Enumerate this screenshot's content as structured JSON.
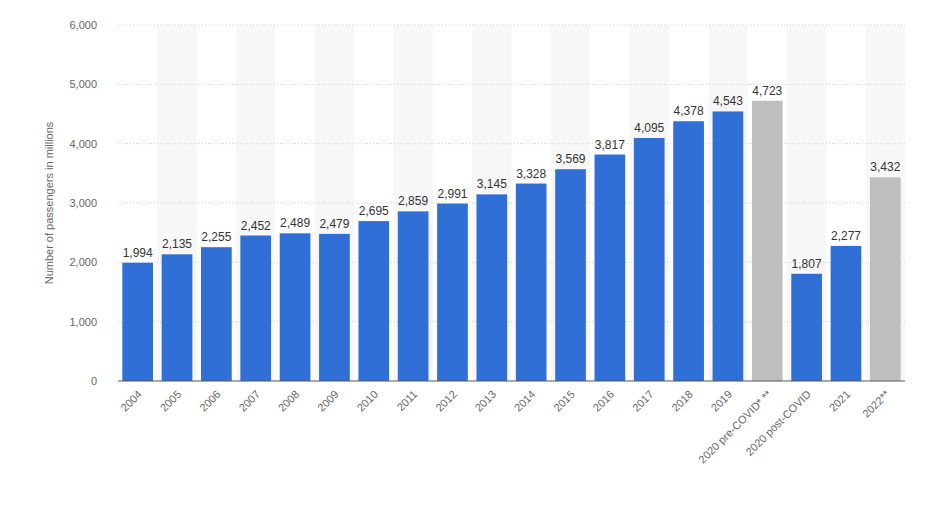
{
  "chart_data": {
    "type": "bar",
    "y_label": "Number of passengers in millions",
    "categories": [
      "2004",
      "2005",
      "2006",
      "2007",
      "2008",
      "2009",
      "2010",
      "2011",
      "2012",
      "2013",
      "2014",
      "2015",
      "2016",
      "2017",
      "2018",
      "2019",
      "2020 pre-COVID* **",
      "2020 post-COVID",
      "2021",
      "2022**"
    ],
    "values": [
      1994,
      2135,
      2255,
      2452,
      2489,
      2479,
      2695,
      2859,
      2991,
      3145,
      3328,
      3569,
      3817,
      4095,
      4378,
      4543,
      4723,
      1807,
      2277,
      3432
    ],
    "value_labels": [
      "1,994",
      "2,135",
      "2,255",
      "2,452",
      "2,489",
      "2,479",
      "2,695",
      "2,859",
      "2,991",
      "3,145",
      "3,328",
      "3,569",
      "3,817",
      "4,095",
      "4,378",
      "4,543",
      "4,723",
      "1,807",
      "2,277",
      "3,432"
    ],
    "colors": [
      "#2f6fd6",
      "#2f6fd6",
      "#2f6fd6",
      "#2f6fd6",
      "#2f6fd6",
      "#2f6fd6",
      "#2f6fd6",
      "#2f6fd6",
      "#2f6fd6",
      "#2f6fd6",
      "#2f6fd6",
      "#2f6fd6",
      "#2f6fd6",
      "#2f6fd6",
      "#2f6fd6",
      "#2f6fd6",
      "#bebebe",
      "#2f6fd6",
      "#2f6fd6",
      "#bebebe"
    ],
    "ylim": [
      0,
      6000
    ],
    "yticks": [
      0,
      {
        "value": 1000,
        "label": "1,000"
      },
      {
        "value": 2000,
        "label": "2,000"
      },
      {
        "value": 3000,
        "label": "3,000"
      },
      {
        "value": 4000,
        "label": "4,000"
      },
      {
        "value": 5000,
        "label": "5,000"
      },
      {
        "value": 6000,
        "label": "6,000"
      }
    ],
    "grid": true,
    "data_labels": true
  }
}
